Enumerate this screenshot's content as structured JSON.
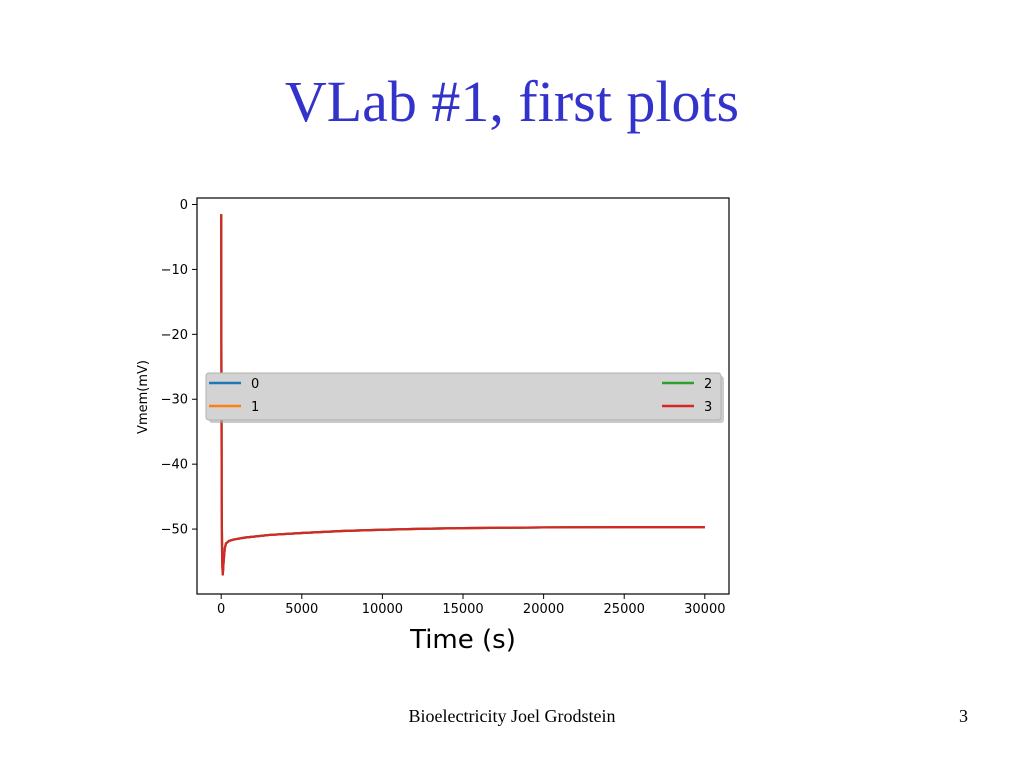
{
  "slide": {
    "title": "VLab #1, first plots",
    "footer": "Bioelectricity Joel Grodstein",
    "page_number": "3"
  },
  "chart_data": {
    "type": "line",
    "title": "",
    "xlabel": "Time (s)",
    "ylabel": "Vmem(mV)",
    "xlim": [
      -1500,
      31500
    ],
    "ylim": [
      -60,
      1
    ],
    "xticks": [
      0,
      5000,
      10000,
      15000,
      20000,
      25000,
      30000
    ],
    "yticks": [
      0,
      -10,
      -20,
      -30,
      -40,
      -50
    ],
    "grid": false,
    "legend": {
      "placement": "center",
      "entries": [
        "0",
        "1",
        "2",
        "3"
      ]
    },
    "series": [
      {
        "name": "0",
        "color": "#1f77b4",
        "x": [
          0,
          30,
          60,
          100,
          150,
          220,
          300,
          500,
          800,
          1500,
          3000,
          5000,
          7500,
          10000,
          12500,
          15000,
          17500,
          20000,
          22500,
          25000,
          27500,
          30000
        ],
        "y": [
          -1.5,
          -45,
          -55,
          -57,
          -55,
          -53,
          -52.2,
          -51.8,
          -51.6,
          -51.3,
          -50.9,
          -50.6,
          -50.3,
          -50.1,
          -49.95,
          -49.85,
          -49.8,
          -49.75,
          -49.72,
          -49.7,
          -49.7,
          -49.7
        ]
      },
      {
        "name": "1",
        "color": "#ff7f0e",
        "x": [
          0,
          30,
          60,
          100,
          150,
          220,
          300,
          500,
          800,
          1500,
          3000,
          5000,
          7500,
          10000,
          12500,
          15000,
          17500,
          20000,
          22500,
          25000,
          27500,
          30000
        ],
        "y": [
          -1.5,
          -45,
          -55,
          -57,
          -55,
          -53,
          -52.2,
          -51.8,
          -51.6,
          -51.3,
          -50.9,
          -50.6,
          -50.3,
          -50.1,
          -49.95,
          -49.85,
          -49.8,
          -49.75,
          -49.72,
          -49.7,
          -49.7,
          -49.7
        ]
      },
      {
        "name": "2",
        "color": "#2ca02c",
        "x": [
          0,
          30,
          60,
          100,
          150,
          220,
          300,
          500,
          800,
          1500,
          3000,
          5000,
          7500,
          10000,
          12500,
          15000,
          17500,
          20000,
          22500,
          25000,
          27500,
          30000
        ],
        "y": [
          -1.5,
          -45,
          -55,
          -57,
          -55,
          -53,
          -52.2,
          -51.8,
          -51.6,
          -51.3,
          -50.9,
          -50.6,
          -50.3,
          -50.1,
          -49.95,
          -49.85,
          -49.8,
          -49.75,
          -49.72,
          -49.7,
          -49.7,
          -49.7
        ]
      },
      {
        "name": "3",
        "color": "#d62728",
        "x": [
          0,
          30,
          60,
          100,
          150,
          220,
          300,
          500,
          800,
          1500,
          3000,
          5000,
          7500,
          10000,
          12500,
          15000,
          17500,
          20000,
          22500,
          25000,
          27500,
          30000
        ],
        "y": [
          -1.5,
          -45,
          -55,
          -57,
          -55,
          -53,
          -52.2,
          -51.8,
          -51.6,
          -51.3,
          -50.9,
          -50.6,
          -50.3,
          -50.1,
          -49.95,
          -49.85,
          -49.8,
          -49.75,
          -49.72,
          -49.7,
          -49.7,
          -49.7
        ]
      }
    ]
  }
}
